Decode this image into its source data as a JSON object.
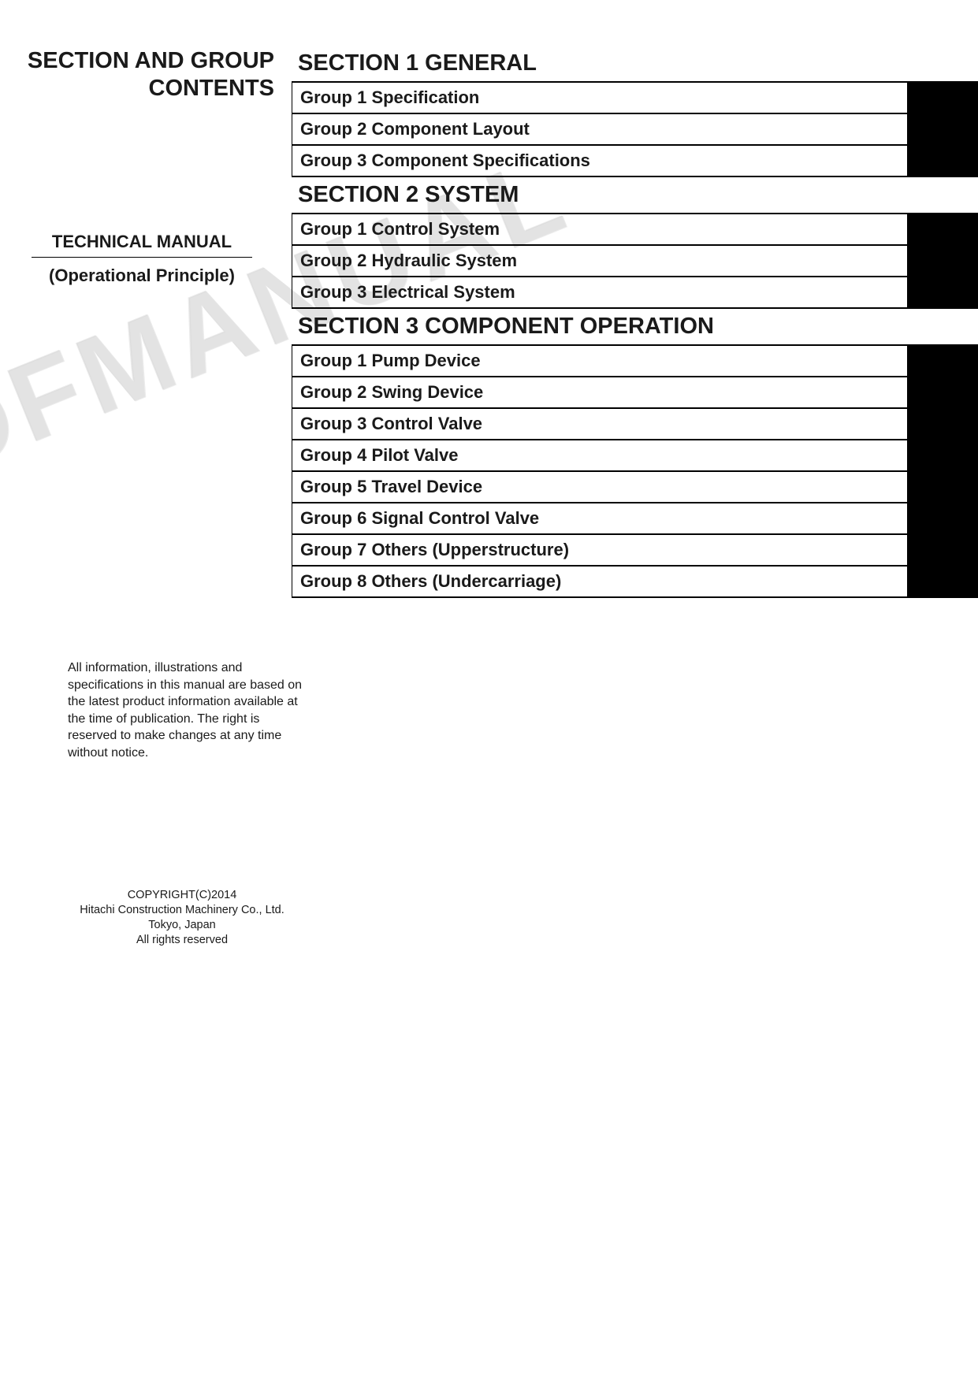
{
  "page_title_line1": "SECTION AND GROUP",
  "page_title_line2": "CONTENTS",
  "manual_label": "TECHNICAL MANUAL",
  "manual_sublabel": "(Operational Principle)",
  "sections": [
    {
      "title": "SECTION 1 GENERAL",
      "groups": [
        "Group 1 Specification",
        "Group 2 Component Layout",
        "Group 3 Component Specifications"
      ]
    },
    {
      "title": "SECTION 2 SYSTEM",
      "groups": [
        "Group 1 Control System",
        "Group 2 Hydraulic System",
        "Group 3 Electrical System"
      ]
    },
    {
      "title": "SECTION 3 COMPONENT OPERATION",
      "groups": [
        "Group 1 Pump Device",
        "Group 2 Swing Device",
        "Group 3 Control Valve",
        "Group 4 Pilot Valve",
        "Group 5 Travel Device",
        "Group 6 Signal Control Valve",
        "Group 7 Others (Upperstructure)",
        "Group 8 Others (Undercarriage)"
      ]
    }
  ],
  "disclaimer": "All information, illustrations and specifications in this manual are based on the latest product information available at the time of publication. The right is reserved to make changes at any time without notice.",
  "copyright_line1": "COPYRIGHT(C)2014",
  "copyright_line2": "Hitachi Construction Machinery Co., Ltd.",
  "copyright_line3": "Tokyo, Japan",
  "copyright_line4": "All rights reserved",
  "watermark_text": "OFMANUAL",
  "colors": {
    "text": "#1a1a1a",
    "tab_background": "#000000",
    "page_background": "#ffffff",
    "border": "#000000",
    "watermark": "rgba(180,180,180,0.25)"
  },
  "typography": {
    "title_fontsize": 29,
    "section_fontsize": 29,
    "group_fontsize": 22,
    "manual_fontsize": 22,
    "disclaimer_fontsize": 16,
    "copyright_fontsize": 14.5
  }
}
